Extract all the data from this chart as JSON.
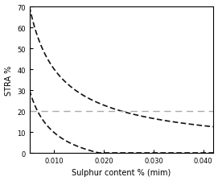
{
  "title": "",
  "xlabel": "Sulphur content % (mim)",
  "ylabel": "STRA %",
  "xlim": [
    0.005,
    0.042
  ],
  "ylim": [
    0,
    70
  ],
  "yticks": [
    0,
    10,
    20,
    30,
    40,
    50,
    60,
    70
  ],
  "xticks": [
    0.01,
    0.02,
    0.03,
    0.04
  ],
  "hline_y": 20,
  "hline_color": "#aaaaaa",
  "curve_color": "#111111",
  "figsize": [
    2.71,
    2.26
  ],
  "dpi": 100,
  "upper_A": 0.7,
  "upper_c": 0.0095,
  "lower_A": 0.28,
  "lower_c": 0.0065
}
